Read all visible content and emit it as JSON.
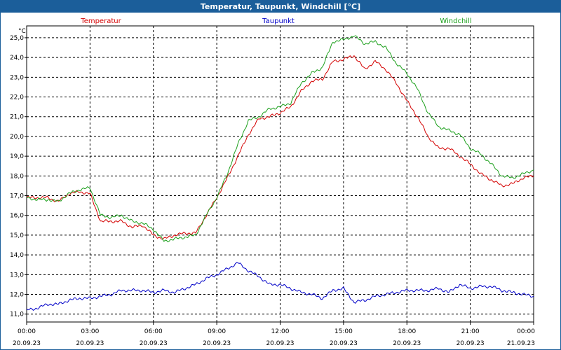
{
  "title": "Temperatur, Taupunkt, Windchill [°C]",
  "chart_data": {
    "type": "line",
    "title": "Temperatur, Taupunkt, Windchill [°C]",
    "ylabel": "°C",
    "ylim": [
      10.6,
      25.6
    ],
    "yticks": [
      11.0,
      12.0,
      13.0,
      14.0,
      15.0,
      16.0,
      17.0,
      18.0,
      19.0,
      20.0,
      21.0,
      22.0,
      23.0,
      24.0,
      25.0
    ],
    "ytick_labels": [
      "11,0",
      "12,0",
      "13,0",
      "14,0",
      "15,0",
      "16,0",
      "17,0",
      "18,0",
      "19,0",
      "20,0",
      "21,0",
      "22,0",
      "23,0",
      "24,0",
      "25,0"
    ],
    "xticks": [
      {
        "time": "00:00",
        "date": "20.09.23"
      },
      {
        "time": "03:00",
        "date": "20.09.23"
      },
      {
        "time": "06:00",
        "date": "20.09.23"
      },
      {
        "time": "09:00",
        "date": "20.09.23"
      },
      {
        "time": "12:00",
        "date": "20.09.23"
      },
      {
        "time": "15:00",
        "date": "20.09.23"
      },
      {
        "time": "18:00",
        "date": "20.09.23"
      },
      {
        "time": "21:00",
        "date": "20.09.23"
      },
      {
        "time": "00:00",
        "date": "21.09.23"
      }
    ],
    "x_hours": [
      0,
      0.5,
      1,
      1.5,
      2,
      2.5,
      3,
      3.5,
      4,
      4.5,
      5,
      5.5,
      6,
      6.5,
      7,
      7.5,
      8,
      8.5,
      9,
      9.5,
      10,
      10.5,
      11,
      11.5,
      12,
      12.5,
      13,
      13.5,
      14,
      14.5,
      15,
      15.5,
      16,
      16.5,
      17,
      17.5,
      18,
      18.5,
      19,
      19.5,
      20,
      20.5,
      21,
      21.5,
      22,
      22.5,
      23,
      23.5,
      24
    ],
    "grid": true,
    "legend": "top",
    "series": [
      {
        "name": "Temperatur",
        "color": "#d40000",
        "values": [
          16.9,
          16.9,
          16.9,
          16.7,
          17.1,
          17.2,
          17.1,
          15.7,
          15.7,
          15.7,
          15.4,
          15.5,
          15.0,
          14.8,
          15.0,
          15.1,
          15.1,
          16.0,
          16.9,
          17.9,
          19.0,
          20.1,
          20.9,
          21.0,
          21.2,
          21.5,
          22.3,
          22.8,
          22.9,
          23.8,
          23.9,
          24.1,
          23.4,
          23.8,
          23.4,
          22.7,
          21.8,
          21.0,
          20.0,
          19.4,
          19.4,
          19.0,
          18.6,
          18.1,
          17.8,
          17.5,
          17.6,
          17.9,
          18.0
        ]
      },
      {
        "name": "Taupunkt",
        "color": "#0000c8",
        "values": [
          11.2,
          11.3,
          11.5,
          11.5,
          11.7,
          11.8,
          11.8,
          11.9,
          12.0,
          12.2,
          12.2,
          12.2,
          12.1,
          12.2,
          12.1,
          12.3,
          12.5,
          12.8,
          13.0,
          13.3,
          13.6,
          13.2,
          12.9,
          12.5,
          12.5,
          12.3,
          12.1,
          12.0,
          11.8,
          12.2,
          12.3,
          11.6,
          11.7,
          11.9,
          12.0,
          12.1,
          12.2,
          12.2,
          12.2,
          12.3,
          12.1,
          12.5,
          12.3,
          12.4,
          12.4,
          12.2,
          12.1,
          12.0,
          11.9
        ]
      },
      {
        "name": "Windchill",
        "color": "#1ca01c",
        "values": [
          16.9,
          16.8,
          16.8,
          16.7,
          17.1,
          17.3,
          17.4,
          16.0,
          15.9,
          16.0,
          15.7,
          15.6,
          15.3,
          14.7,
          14.8,
          14.9,
          15.0,
          16.0,
          16.9,
          18.1,
          19.6,
          20.8,
          21.0,
          21.4,
          21.5,
          21.7,
          22.7,
          23.2,
          23.5,
          24.8,
          24.9,
          25.1,
          24.7,
          24.8,
          24.5,
          23.7,
          23.2,
          22.4,
          21.2,
          20.5,
          20.3,
          20.1,
          19.4,
          19.1,
          18.6,
          18.0,
          17.9,
          18.1,
          18.3
        ]
      }
    ]
  }
}
